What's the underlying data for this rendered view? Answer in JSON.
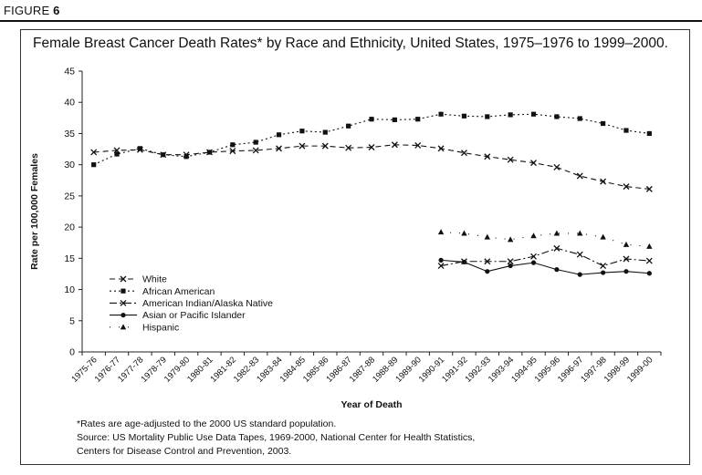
{
  "figure": {
    "label_prefix": "FIGURE",
    "number": "6"
  },
  "footnotes": [
    "*Rates are age-adjusted to the 2000 US standard population.",
    "Source: US Mortality Public Use Data Tapes, 1969-2000, National Center for Health Statistics,",
    "Centers for Disease Control and Prevention, 2003."
  ],
  "chart_data": {
    "type": "line",
    "title": "Female Breast Cancer Death Rates* by Race and Ethnicity, United States, 1975–1976 to 1999–2000.",
    "xlabel": "Year of Death",
    "ylabel": "Rate per 100,000 Females",
    "ylim": [
      0,
      45
    ],
    "yticks": [
      0,
      5,
      10,
      15,
      20,
      25,
      30,
      35,
      40,
      45
    ],
    "grid": false,
    "legend_position": "bottom-left",
    "categories": [
      "1975-76",
      "1976-77",
      "1977-78",
      "1978-79",
      "1979-80",
      "1980-81",
      "1981-82",
      "1982-83",
      "1983-84",
      "1984-85",
      "1985-86",
      "1986-87",
      "1987-88",
      "1988-89",
      "1989-90",
      "1990-91",
      "1991-92",
      "1992-93",
      "1993-94",
      "1994-95",
      "1995-96",
      "1996-97",
      "1997-98",
      "1998-99",
      "1999-00"
    ],
    "series": [
      {
        "name": "White",
        "marker": "x",
        "dash": "dash",
        "values": [
          32.0,
          32.3,
          32.4,
          31.6,
          31.6,
          32.0,
          32.2,
          32.3,
          32.6,
          33.0,
          33.0,
          32.7,
          32.8,
          33.2,
          33.1,
          32.6,
          31.9,
          31.3,
          30.8,
          30.3,
          29.6,
          28.2,
          27.3,
          26.5,
          26.1
        ]
      },
      {
        "name": "African American",
        "marker": "square",
        "dash": "dot",
        "values": [
          30.0,
          31.7,
          32.6,
          31.6,
          31.3,
          32.0,
          33.2,
          33.6,
          34.8,
          35.4,
          35.2,
          36.2,
          37.3,
          37.2,
          37.3,
          38.1,
          37.8,
          37.7,
          38.0,
          38.1,
          37.7,
          37.4,
          36.6,
          35.5,
          35.0
        ]
      },
      {
        "name": "American Indian/Alaska Native",
        "marker": "x",
        "dash": "dashdot",
        "values": [
          null,
          null,
          null,
          null,
          null,
          null,
          null,
          null,
          null,
          null,
          null,
          null,
          null,
          null,
          null,
          13.8,
          14.5,
          14.5,
          14.5,
          15.3,
          16.6,
          15.6,
          13.8,
          14.9,
          14.6
        ]
      },
      {
        "name": "Asian or Pacific Islander",
        "marker": "circle",
        "dash": "solid",
        "values": [
          null,
          null,
          null,
          null,
          null,
          null,
          null,
          null,
          null,
          null,
          null,
          null,
          null,
          null,
          null,
          14.7,
          14.4,
          12.9,
          13.8,
          14.3,
          13.2,
          12.4,
          12.7,
          12.9,
          12.6
        ]
      },
      {
        "name": "Hispanic",
        "marker": "triangle",
        "dash": "sparse",
        "values": [
          null,
          null,
          null,
          null,
          null,
          null,
          null,
          null,
          null,
          null,
          null,
          null,
          null,
          null,
          null,
          19.2,
          19.0,
          18.4,
          18.0,
          18.6,
          19.0,
          19.0,
          18.4,
          17.2,
          16.9
        ]
      }
    ]
  }
}
